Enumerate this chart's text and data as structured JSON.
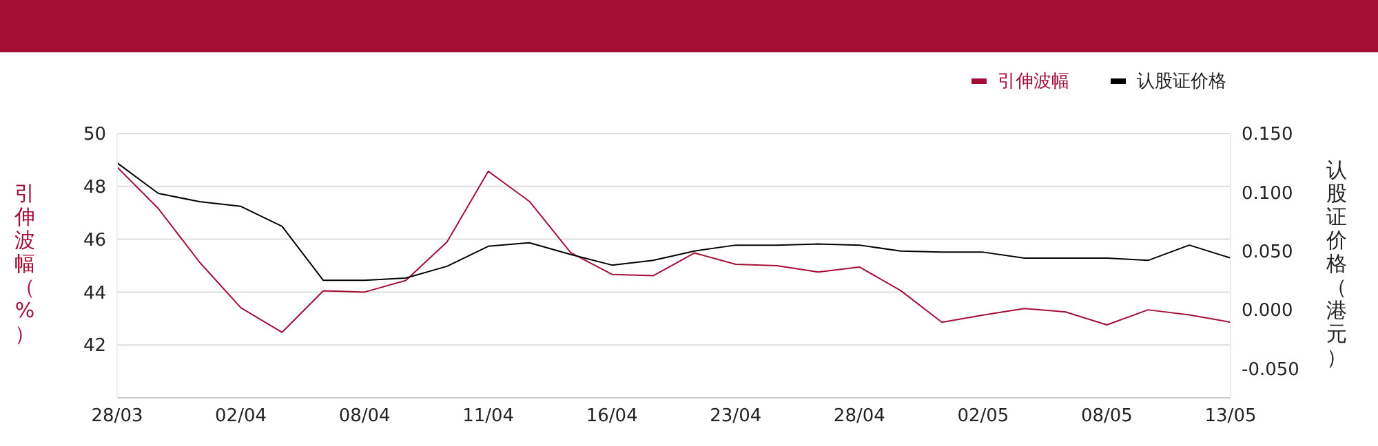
{
  "chart_data": {
    "type": "line",
    "categories": [
      "28/03",
      null,
      null,
      "02/04",
      null,
      null,
      "08/04",
      null,
      null,
      "11/04",
      null,
      null,
      "16/04",
      null,
      null,
      "23/04",
      null,
      null,
      "28/04",
      null,
      null,
      "02/05",
      null,
      null,
      "08/05",
      null,
      null,
      "13/05"
    ],
    "series": [
      {
        "name": "引伸波幅",
        "color": "#a50e34",
        "values": [
          48.73,
          47.16,
          45.13,
          43.41,
          42.48,
          44.05,
          44.0,
          44.44,
          45.9,
          48.57,
          47.43,
          45.49,
          44.67,
          44.62,
          45.48,
          45.05,
          45.0,
          44.76,
          44.95,
          44.06,
          42.86,
          43.13,
          43.38,
          43.25,
          42.76,
          43.33,
          43.14,
          42.86
        ]
      },
      {
        "name": "认股证价格",
        "color": "#000000",
        "axis": "y2",
        "values": [
          0.125,
          0.099,
          0.092,
          0.088,
          0.071,
          0.025,
          0.025,
          0.027,
          0.037,
          0.054,
          0.057,
          0.047,
          0.038,
          0.042,
          0.05,
          0.055,
          0.055,
          0.056,
          0.055,
          0.05,
          0.049,
          0.049,
          0.044,
          0.044,
          0.044,
          0.042,
          0.055,
          0.044
        ]
      }
    ],
    "ylabel": "引伸波幅（%）",
    "y2label": "认股证价格（港元）",
    "ylim": [
      40,
      50
    ],
    "yticks": [
      42,
      44,
      46,
      48,
      50
    ],
    "y2lim": [
      -0.075,
      0.15
    ],
    "y2ticks": [
      {
        "value": -0.05,
        "label": "-0.050"
      },
      {
        "value": 0,
        "label": "0.000"
      },
      {
        "value": 0.05,
        "label": "0.050"
      },
      {
        "value": 0.1,
        "label": "0.100"
      },
      {
        "value": 0.15,
        "label": "0.150"
      }
    ],
    "grid": "y",
    "legend": "top right",
    "marker": "none",
    "line_style": "solid"
  }
}
